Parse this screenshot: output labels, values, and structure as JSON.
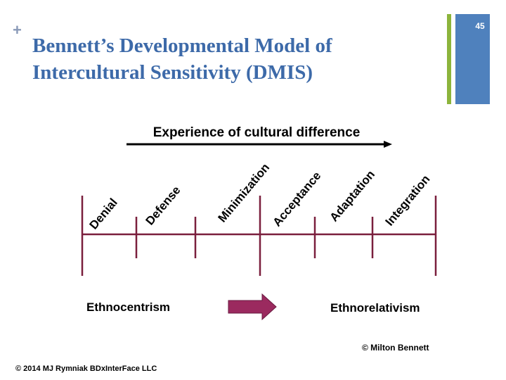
{
  "header": {
    "plus": "+",
    "title_lines": [
      "Bennett’s  Developmental Model of",
      "Intercultural Sensitivity (DMIS)"
    ],
    "slide_number": "45"
  },
  "diagram": {
    "axis_label": "Experience of cultural difference",
    "stages": [
      "Denial",
      "Defense",
      "Minimization",
      "Acceptance",
      "Adaptation",
      "Integration"
    ],
    "left_group": "Ethnocentrism",
    "right_group": "Ethnorelativism",
    "credit": "© Milton Bennett"
  },
  "footer": {
    "copyright": "© 2014 MJ Rymniak BDxInterFace LLC"
  }
}
